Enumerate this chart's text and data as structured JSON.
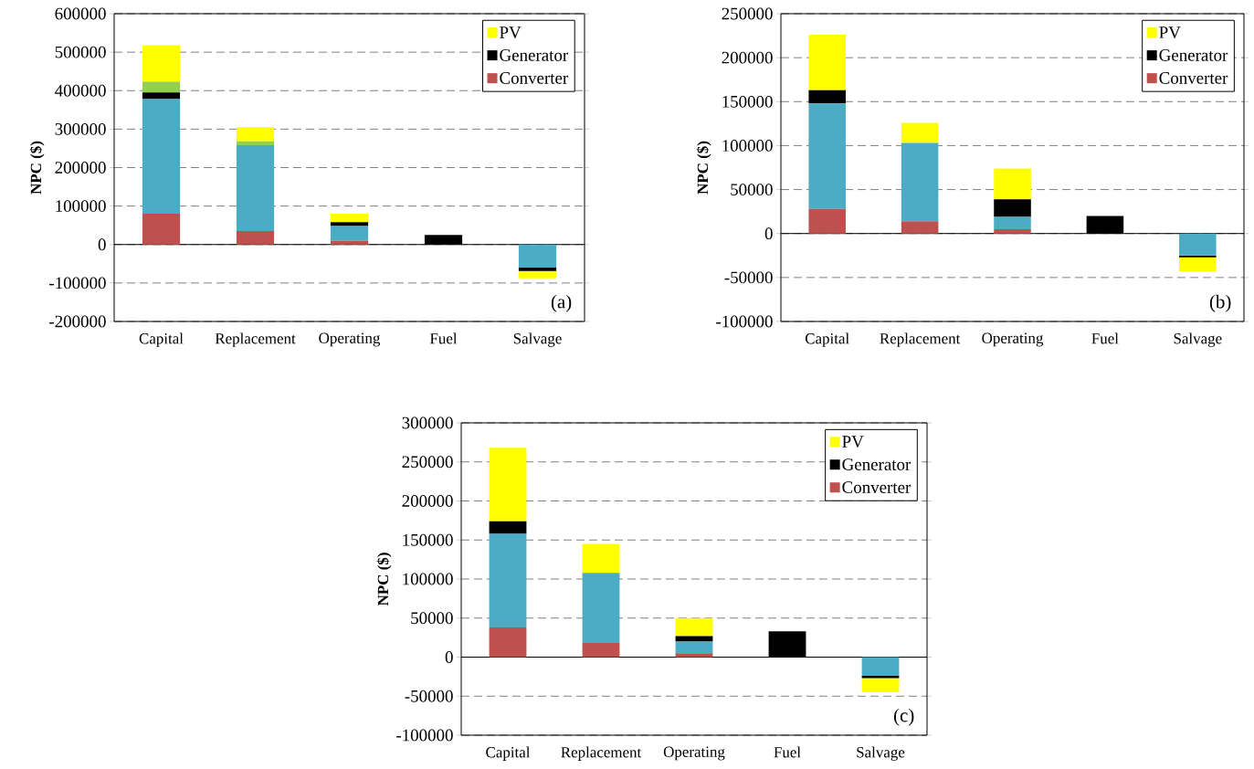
{
  "chart_data": [
    {
      "type": "bar",
      "stacked": true,
      "categories": [
        "Capital",
        "Replacement",
        "Operating",
        "Fuel",
        "Salvage"
      ],
      "ylabel": "NPC ($)",
      "ylim": [
        -200000,
        600000
      ],
      "yticks": [
        -200000,
        -100000,
        0,
        100000,
        200000,
        300000,
        400000,
        500000,
        600000
      ],
      "grid": "y",
      "legend": "top right",
      "annotations": [
        "(a)"
      ],
      "series": [
        {
          "name": "Converter",
          "color": "#c0504d",
          "values": [
            80000,
            35000,
            10000,
            0,
            0
          ]
        },
        {
          "color": "#4bacc6",
          "values": [
            298000,
            223000,
            38000,
            0,
            -60000
          ]
        },
        {
          "name": "Generator",
          "color": "#000000",
          "values": [
            17000,
            0,
            10000,
            25000,
            -9000
          ]
        },
        {
          "color": "#92d050",
          "values": [
            28000,
            10000,
            0,
            0,
            0
          ]
        },
        {
          "name": "PV",
          "color": "#ffff00",
          "values": [
            95000,
            37000,
            22000,
            0,
            -19000
          ]
        }
      ]
    },
    {
      "type": "bar",
      "stacked": true,
      "categories": [
        "Capital",
        "Replacement",
        "Operating",
        "Fuel",
        "Salvage"
      ],
      "ylabel": "NPC ($)",
      "ylim": [
        -100000,
        250000
      ],
      "yticks": [
        -100000,
        -50000,
        0,
        50000,
        100000,
        150000,
        200000,
        250000
      ],
      "grid": "y",
      "legend": "top right",
      "annotations": [
        "(b)"
      ],
      "series": [
        {
          "name": "Converter",
          "color": "#c0504d",
          "values": [
            28000,
            14000,
            5000,
            0,
            0
          ]
        },
        {
          "color": "#4bacc6",
          "values": [
            120000,
            89000,
            14000,
            0,
            -25000
          ]
        },
        {
          "name": "Generator",
          "color": "#000000",
          "values": [
            15000,
            0,
            20000,
            20000,
            -2000
          ]
        },
        {
          "name": "PV",
          "color": "#ffff00",
          "values": [
            63000,
            23000,
            35000,
            0,
            -16000
          ]
        }
      ]
    },
    {
      "type": "bar",
      "stacked": true,
      "categories": [
        "Capital",
        "Replacement",
        "Operating",
        "Fuel",
        "Salvage"
      ],
      "ylabel": "NPC ($)",
      "ylim": [
        -100000,
        300000
      ],
      "yticks": [
        -100000,
        -50000,
        0,
        50000,
        100000,
        150000,
        200000,
        250000,
        300000
      ],
      "grid": "y",
      "legend": "top right",
      "annotations": [
        "(c)"
      ],
      "series": [
        {
          "name": "Converter",
          "color": "#c0504d",
          "values": [
            38000,
            18000,
            5000,
            0,
            0
          ]
        },
        {
          "color": "#4bacc6",
          "values": [
            120000,
            90000,
            15000,
            0,
            -24000
          ]
        },
        {
          "name": "Generator",
          "color": "#000000",
          "values": [
            16000,
            0,
            7000,
            33000,
            -3000
          ]
        },
        {
          "name": "PV",
          "color": "#ffff00",
          "values": [
            94000,
            37000,
            23000,
            0,
            -18000
          ]
        }
      ]
    }
  ]
}
